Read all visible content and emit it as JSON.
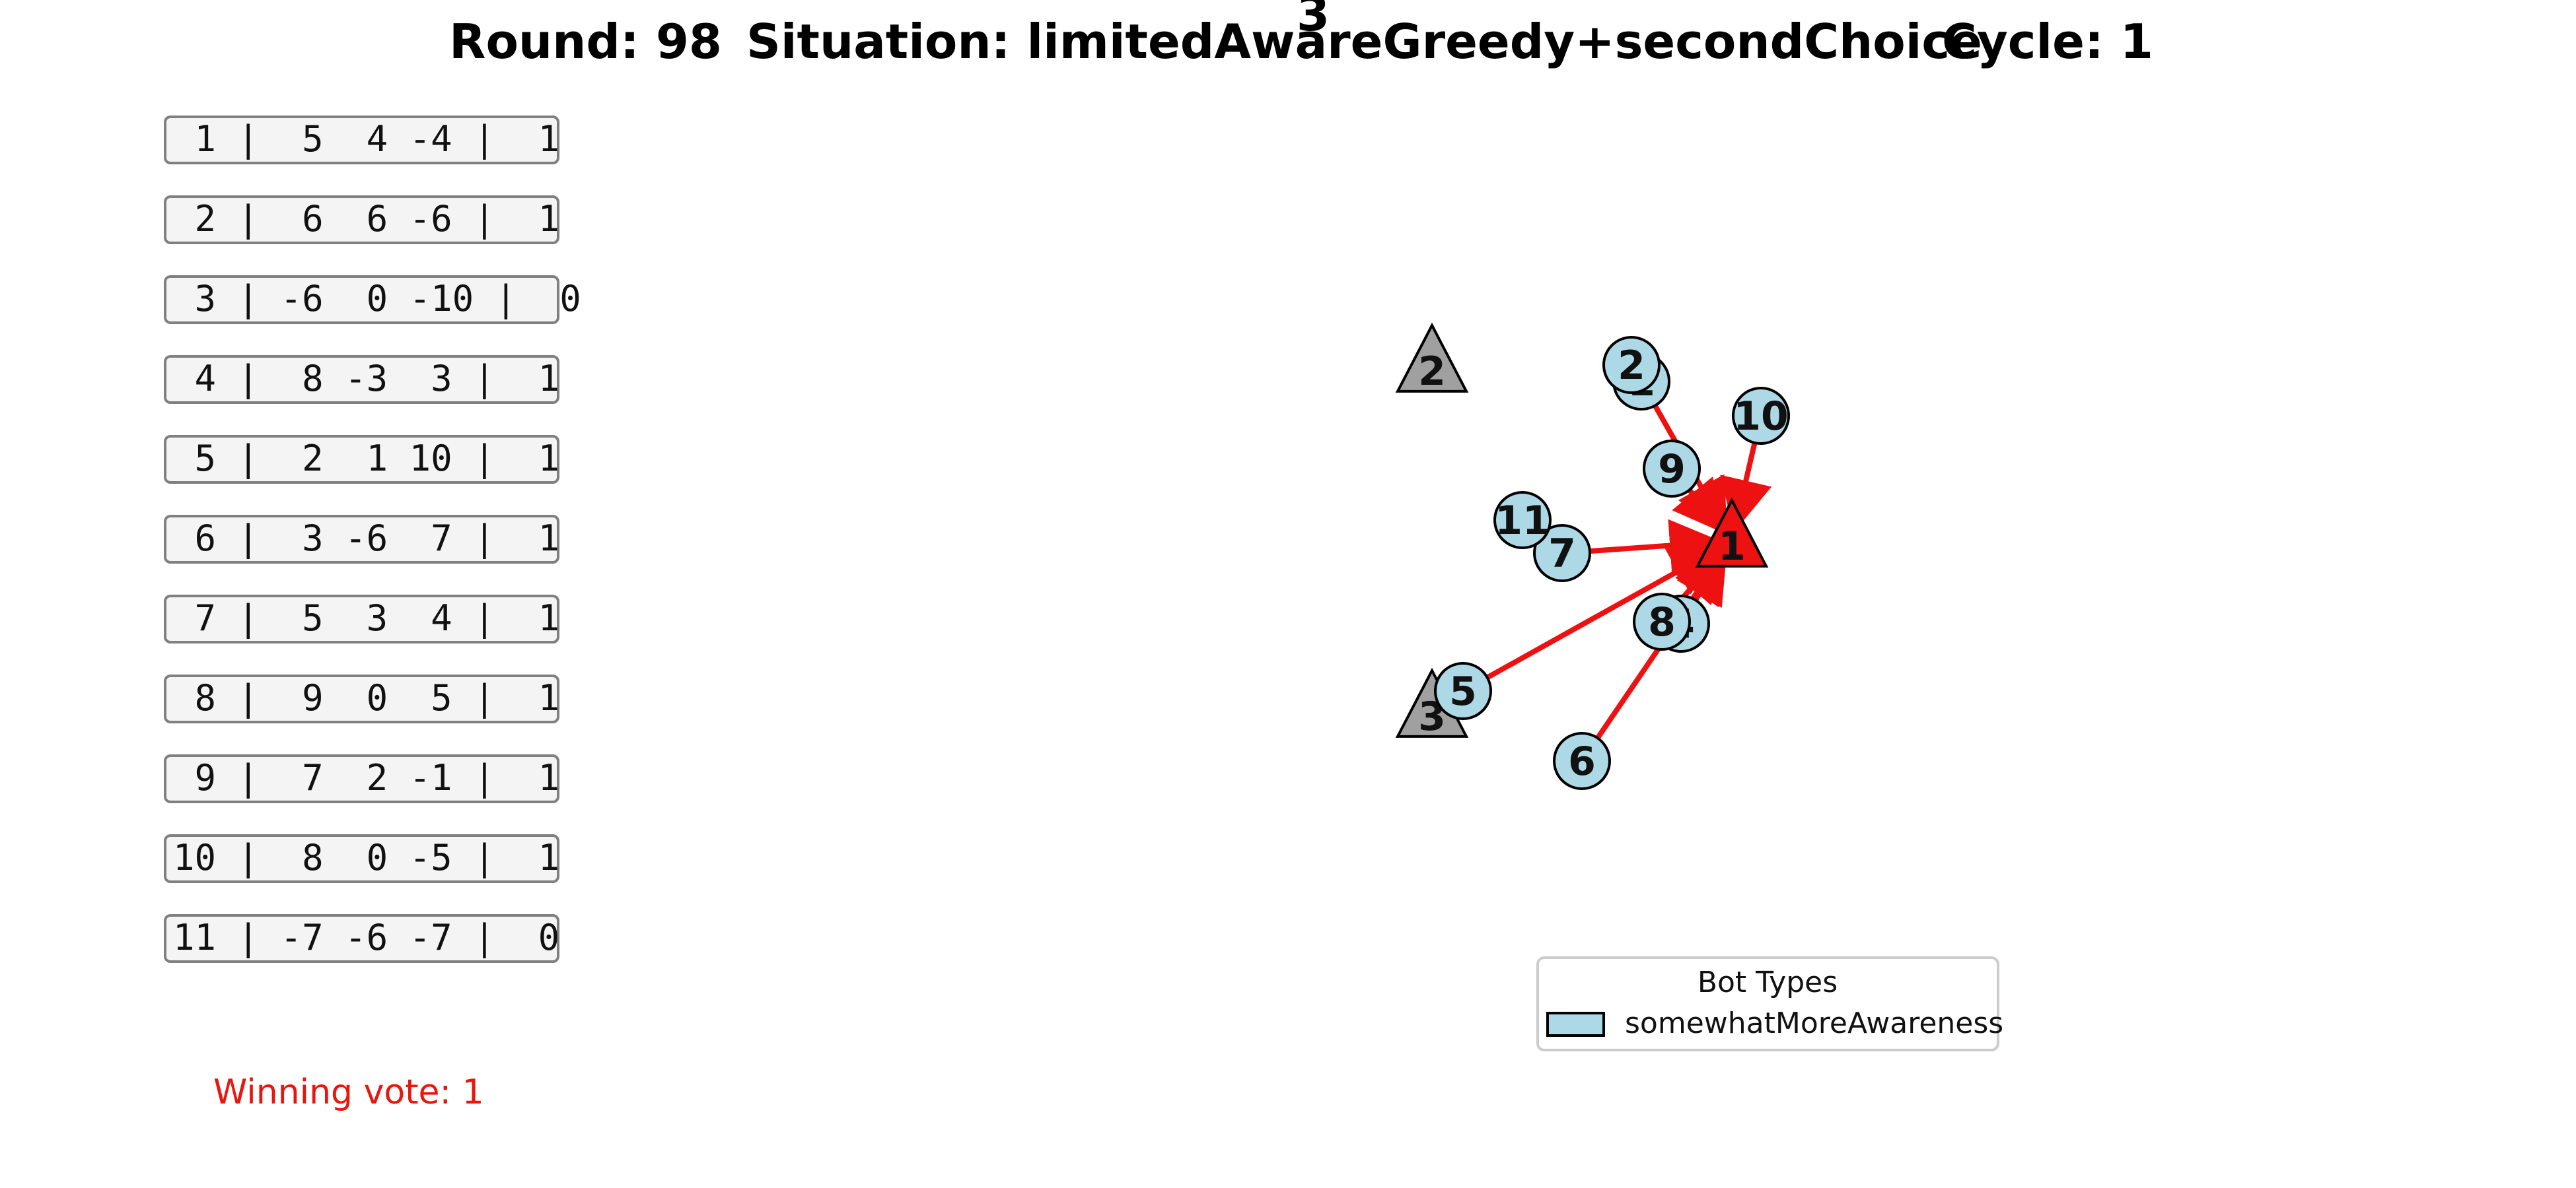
{
  "title": {
    "round": "Round: 98",
    "situation": "Situation: limitedAwareGreedy+secondChoice",
    "cycle": "Cycle: 1"
  },
  "top_label": "3",
  "vote_rows": [
    " 1 |  5  4 -4 |  1",
    " 2 |  6  6 -6 |  1",
    " 3 | -6  0 -10 |  0",
    " 4 |  8 -3  3 |  1",
    " 5 |  2  1 10 |  1",
    " 6 |  3 -6  7 |  1",
    " 7 |  5  3  4 |  1",
    " 8 |  9  0  5 |  1",
    " 9 |  7  2 -1 |  1",
    "10 |  8  0 -5 |  1",
    "11 | -7 -6 -7 |  0"
  ],
  "winning_vote": "Winning vote: 1",
  "candidates": [
    {
      "id": "1",
      "color": "#ee1111",
      "winner": true
    },
    {
      "id": "2",
      "color": "#a0a0a0",
      "winner": false
    },
    {
      "id": "3",
      "color": "#a0a0a0",
      "winner": false
    }
  ],
  "bots": [
    {
      "id": "1",
      "vote": "1"
    },
    {
      "id": "2",
      "vote": "1"
    },
    {
      "id": "3",
      "vote": "0"
    },
    {
      "id": "4",
      "vote": "1"
    },
    {
      "id": "5",
      "vote": "1"
    },
    {
      "id": "6",
      "vote": "1"
    },
    {
      "id": "7",
      "vote": "1"
    },
    {
      "id": "8",
      "vote": "1"
    },
    {
      "id": "9",
      "vote": "1"
    },
    {
      "id": "10",
      "vote": "1"
    },
    {
      "id": "11",
      "vote": "0"
    }
  ],
  "legend": {
    "title": "Bot Types",
    "items": [
      {
        "label": "somewhatMoreAwareness",
        "color": "#add8e6"
      }
    ]
  }
}
